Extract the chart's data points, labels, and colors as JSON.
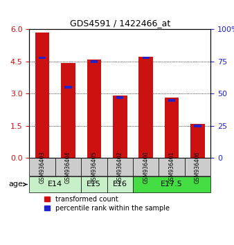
{
  "title": "GDS4591 / 1422466_at",
  "samples": [
    "GSM936403",
    "GSM936404",
    "GSM936405",
    "GSM936402",
    "GSM936400",
    "GSM936401",
    "GSM936406"
  ],
  "red_values": [
    5.85,
    4.42,
    4.58,
    2.92,
    4.73,
    2.82,
    1.58
  ],
  "blue_values": [
    78,
    55,
    75,
    47,
    78,
    45,
    25
  ],
  "age_groups": [
    {
      "label": "E14",
      "span": [
        0,
        2
      ],
      "color": "#c8f0c8"
    },
    {
      "label": "E15",
      "span": [
        2,
        3
      ],
      "color": "#c8f0c8"
    },
    {
      "label": "E16",
      "span": [
        3,
        4
      ],
      "color": "#c8f0c8"
    },
    {
      "label": "E17.5",
      "span": [
        4,
        7
      ],
      "color": "#44dd44"
    }
  ],
  "left_ylim": [
    0,
    6
  ],
  "left_yticks": [
    0,
    1.5,
    3,
    4.5,
    6
  ],
  "right_ylim": [
    0,
    100
  ],
  "right_yticks": [
    0,
    25,
    50,
    75,
    100
  ],
  "red_color": "#cc1111",
  "blue_color": "#2222cc",
  "bar_width": 0.55,
  "sample_bg_color": "#cccccc",
  "legend_red_label": "transformed count",
  "legend_blue_label": "percentile rank within the sample"
}
